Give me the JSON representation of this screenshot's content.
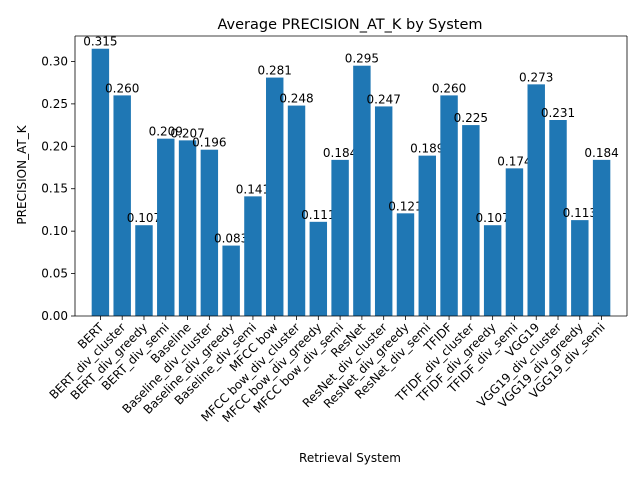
{
  "chart_data": {
    "type": "bar",
    "title": "Average PRECISION_AT_K by System",
    "xlabel": "Retrieval System",
    "ylabel": "PRECISION_AT_K",
    "ylim": [
      0,
      0.33
    ],
    "yticks": [
      "0.00",
      "0.05",
      "0.10",
      "0.15",
      "0.20",
      "0.25",
      "0.30"
    ],
    "grid": false,
    "legend": "none",
    "bar_color": "#1f77b4",
    "categories": [
      "BERT",
      "BERT_div_cluster",
      "BERT_div_greedy",
      "BERT_div_semi",
      "Baseline",
      "Baseline_div_cluster",
      "Baseline_div_greedy",
      "Baseline_div_semi",
      "MFCC bow",
      "MFCC bow_div_cluster",
      "MFCC bow_div_greedy",
      "MFCC bow_div_semi",
      "ResNet",
      "ResNet_div_cluster",
      "ResNet_div_greedy",
      "ResNet_div_semi",
      "TFIDF",
      "TFIDF_div_cluster",
      "TFIDF_div_greedy",
      "TFIDF_div_semi",
      "VGG19",
      "VGG19_div_cluster",
      "VGG19_div_greedy",
      "VGG19_div_semi"
    ],
    "values": [
      0.315,
      0.26,
      0.107,
      0.209,
      0.207,
      0.196,
      0.083,
      0.141,
      0.281,
      0.248,
      0.111,
      0.184,
      0.295,
      0.247,
      0.121,
      0.189,
      0.26,
      0.225,
      0.107,
      0.174,
      0.273,
      0.231,
      0.113,
      0.184
    ],
    "value_labels": [
      "0.315",
      "0.260",
      "0.107",
      "0.209",
      "0.207",
      "0.196",
      "0.083",
      "0.141",
      "0.281",
      "0.248",
      "0.111",
      "0.184",
      "0.295",
      "0.247",
      "0.121",
      "0.189",
      "0.260",
      "0.225",
      "0.107",
      "0.174",
      "0.273",
      "0.231",
      "0.113",
      "0.184"
    ]
  }
}
